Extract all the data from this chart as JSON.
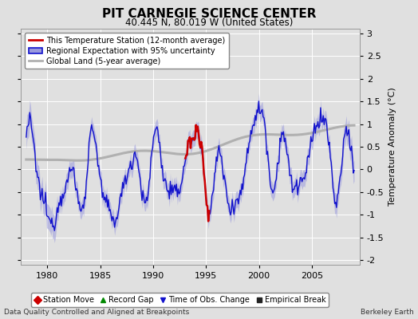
{
  "title": "PIT CARNEGIE SCIENCE CENTER",
  "subtitle": "40.445 N, 80.019 W (United States)",
  "ylabel": "Temperature Anomaly (°C)",
  "xlabel_left": "Data Quality Controlled and Aligned at Breakpoints",
  "xlabel_right": "Berkeley Earth",
  "ylim": [
    -2.1,
    3.1
  ],
  "xlim": [
    1977.5,
    2009.5
  ],
  "xticks": [
    1980,
    1985,
    1990,
    1995,
    2000,
    2005
  ],
  "yticks": [
    -2,
    -1.5,
    -1,
    -0.5,
    0,
    0.5,
    1,
    1.5,
    2,
    2.5,
    3
  ],
  "bg_color": "#e0e0e0",
  "plot_bg_color": "#e0e0e0",
  "regional_color": "#1111cc",
  "regional_shade_color": "#9999dd",
  "station_color": "#cc0000",
  "global_color": "#b0b0b0",
  "bottom_legend": [
    {
      "label": "Station Move",
      "marker": "D",
      "color": "#cc0000"
    },
    {
      "label": "Record Gap",
      "marker": "^",
      "color": "#008800"
    },
    {
      "label": "Time of Obs. Change",
      "marker": "v",
      "color": "#1111cc"
    },
    {
      "label": "Empirical Break",
      "marker": "s",
      "color": "#222222"
    }
  ]
}
